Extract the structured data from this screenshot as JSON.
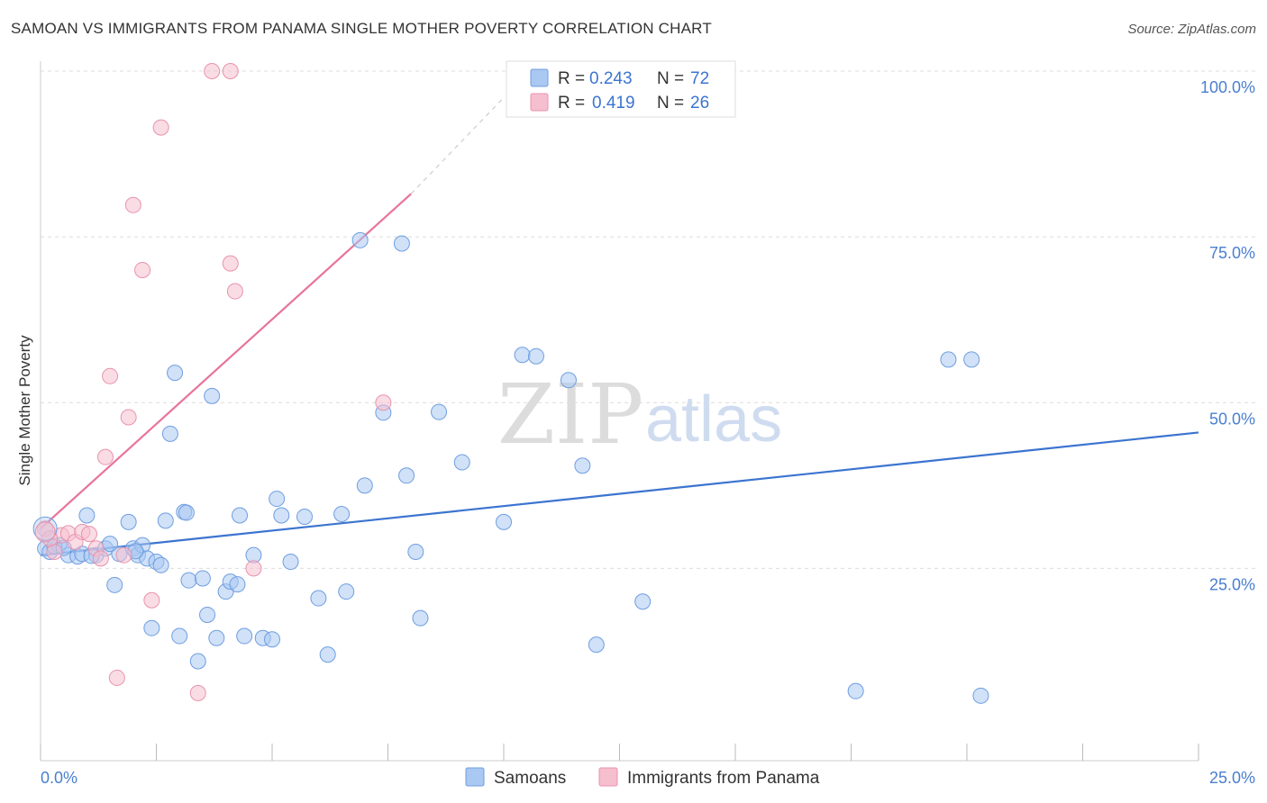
{
  "title": "SAMOAN VS IMMIGRANTS FROM PANAMA SINGLE MOTHER POVERTY CORRELATION CHART",
  "source": "Source: ZipAtlas.com",
  "watermark": {
    "zip": "ZIP",
    "atlas": "atlas"
  },
  "colors": {
    "blue": "#3b74d0",
    "blue_fill": "#a9c8f2",
    "pink": "#e8749a",
    "pink_fill": "#f6bfd0",
    "axis_text": "#4a7fcf"
  },
  "legend_top": [
    {
      "r_label": "R =",
      "r_value": "0.243",
      "n_label": "N =",
      "n_value": "72",
      "series": "blue"
    },
    {
      "r_label": "R =",
      "r_value": "0.419",
      "n_label": "N =",
      "n_value": "26",
      "series": "pink"
    }
  ],
  "legend_bottom": [
    "Samoans",
    "Immigrants from Panama"
  ],
  "chart_data": {
    "type": "scatter",
    "title": "SAMOAN VS IMMIGRANTS FROM PANAMA SINGLE MOTHER POVERTY CORRELATION CHART",
    "xlabel": "",
    "ylabel": "Single Mother Poverty",
    "xlim": [
      0,
      25
    ],
    "ylim": [
      0,
      100
    ],
    "x_tick_labels": [
      "0.0%",
      "25.0%"
    ],
    "y_tick_labels": [
      "100.0%",
      "75.0%",
      "50.0%",
      "25.0%"
    ],
    "y_ticks": [
      100,
      75,
      50,
      25
    ],
    "grid": true,
    "legend_position": "top-center",
    "series": [
      {
        "name": "Samoans",
        "color": "#3b74d0",
        "points": [
          [
            0.1,
            28
          ],
          [
            0.2,
            27.5
          ],
          [
            0.4,
            28.5
          ],
          [
            0.6,
            27
          ],
          [
            0.8,
            26.8
          ],
          [
            0.9,
            27.2
          ],
          [
            1.0,
            33
          ],
          [
            1.2,
            27
          ],
          [
            1.4,
            28
          ],
          [
            1.6,
            22.5
          ],
          [
            1.7,
            27.2
          ],
          [
            1.9,
            32
          ],
          [
            2.0,
            28
          ],
          [
            2.1,
            27
          ],
          [
            2.2,
            28.5
          ],
          [
            2.3,
            26.5
          ],
          [
            2.4,
            16
          ],
          [
            2.5,
            26
          ],
          [
            2.6,
            25.5
          ],
          [
            2.7,
            32.2
          ],
          [
            2.8,
            45.3
          ],
          [
            2.9,
            54.5
          ],
          [
            3.0,
            14.8
          ],
          [
            3.1,
            33.5
          ],
          [
            3.2,
            23.2
          ],
          [
            3.4,
            11
          ],
          [
            3.5,
            23.5
          ],
          [
            3.6,
            18
          ],
          [
            3.7,
            51
          ],
          [
            3.8,
            14.5
          ],
          [
            4.0,
            21.5
          ],
          [
            4.1,
            23
          ],
          [
            4.3,
            33
          ],
          [
            4.4,
            14.8
          ],
          [
            4.6,
            27
          ],
          [
            4.8,
            14.5
          ],
          [
            5.0,
            14.3
          ],
          [
            5.1,
            35.5
          ],
          [
            5.2,
            33
          ],
          [
            5.4,
            26
          ],
          [
            5.7,
            32.8
          ],
          [
            6.0,
            20.5
          ],
          [
            6.2,
            12
          ],
          [
            6.5,
            33.2
          ],
          [
            6.6,
            21.5
          ],
          [
            6.9,
            74.5
          ],
          [
            7.0,
            37.5
          ],
          [
            7.4,
            48.5
          ],
          [
            7.8,
            74
          ],
          [
            7.9,
            39
          ],
          [
            8.1,
            27.5
          ],
          [
            8.2,
            17.5
          ],
          [
            8.6,
            48.6
          ],
          [
            9.1,
            41
          ],
          [
            10.0,
            32
          ],
          [
            10.4,
            57.2
          ],
          [
            10.7,
            57
          ],
          [
            11.4,
            53.4
          ],
          [
            11.7,
            40.5
          ],
          [
            12.0,
            13.5
          ],
          [
            13.0,
            20
          ],
          [
            17.6,
            6.5
          ],
          [
            19.6,
            56.5
          ],
          [
            20.1,
            56.5
          ],
          [
            20.3,
            5.8
          ],
          [
            0.3,
            28.3
          ],
          [
            0.5,
            28.1
          ],
          [
            1.1,
            26.9
          ],
          [
            1.5,
            28.7
          ],
          [
            2.05,
            27.6
          ],
          [
            3.15,
            33.4
          ],
          [
            4.25,
            22.6
          ]
        ]
      },
      {
        "name": "Immigrants from Panama",
        "color": "#e8749a",
        "points": [
          [
            0.1,
            31
          ],
          [
            0.3,
            27.5
          ],
          [
            0.45,
            30
          ],
          [
            0.6,
            30.3
          ],
          [
            0.75,
            29
          ],
          [
            0.9,
            30.5
          ],
          [
            1.05,
            30.2
          ],
          [
            1.2,
            28
          ],
          [
            1.3,
            26.5
          ],
          [
            1.4,
            41.8
          ],
          [
            1.5,
            54
          ],
          [
            1.65,
            8.5
          ],
          [
            1.8,
            27
          ],
          [
            1.9,
            47.8
          ],
          [
            2.0,
            79.8
          ],
          [
            2.2,
            70
          ],
          [
            2.4,
            20.2
          ],
          [
            2.6,
            91.5
          ],
          [
            3.4,
            6.2
          ],
          [
            3.7,
            100
          ],
          [
            4.1,
            100
          ],
          [
            4.1,
            71
          ],
          [
            4.2,
            66.8
          ],
          [
            4.6,
            25
          ],
          [
            7.4,
            50
          ],
          [
            0.2,
            29.5
          ]
        ]
      }
    ],
    "trend_lines": [
      {
        "series": "Samoans",
        "x": [
          0,
          25
        ],
        "y": [
          27,
          45.5
        ]
      },
      {
        "series": "Immigrants from Panama",
        "x": [
          0,
          8
        ],
        "y": [
          31,
          81.5
        ],
        "dashed_extension_to": [
          10,
          96
        ]
      }
    ]
  }
}
